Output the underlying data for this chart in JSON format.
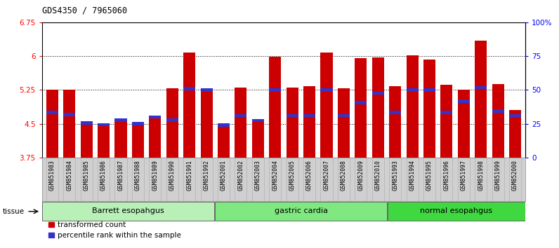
{
  "title": "GDS4350 / 7965060",
  "samples": [
    "GSM851983",
    "GSM851984",
    "GSM851985",
    "GSM851986",
    "GSM851987",
    "GSM851988",
    "GSM851989",
    "GSM851990",
    "GSM851991",
    "GSM851992",
    "GSM852001",
    "GSM852002",
    "GSM852003",
    "GSM852004",
    "GSM852005",
    "GSM852006",
    "GSM852007",
    "GSM852008",
    "GSM852009",
    "GSM852010",
    "GSM851993",
    "GSM851994",
    "GSM851995",
    "GSM851996",
    "GSM851997",
    "GSM851998",
    "GSM851999",
    "GSM852000"
  ],
  "red_values": [
    5.25,
    5.25,
    4.52,
    4.48,
    4.58,
    4.5,
    4.65,
    5.28,
    6.08,
    5.25,
    4.47,
    5.3,
    4.57,
    5.98,
    5.3,
    5.33,
    6.08,
    5.28,
    5.95,
    5.97,
    5.33,
    6.02,
    5.92,
    5.37,
    5.25,
    6.35,
    5.38,
    4.8
  ],
  "blue_values": [
    4.75,
    4.7,
    4.52,
    4.48,
    4.58,
    4.5,
    4.65,
    4.58,
    5.28,
    5.25,
    4.47,
    4.68,
    4.57,
    5.25,
    4.68,
    4.68,
    5.25,
    4.68,
    4.97,
    5.18,
    4.75,
    5.25,
    5.25,
    4.75,
    5.0,
    5.3,
    4.78,
    4.68
  ],
  "groups": [
    {
      "label": "Barrett esopahgus",
      "start": 0,
      "end": 9,
      "color": "#b8f0b8"
    },
    {
      "label": "gastric cardia",
      "start": 10,
      "end": 19,
      "color": "#80e880"
    },
    {
      "label": "normal esopahgus",
      "start": 20,
      "end": 27,
      "color": "#40d840"
    }
  ],
  "ymin": 3.75,
  "ymax": 6.75,
  "yticks": [
    3.75,
    4.5,
    5.25,
    6.0,
    6.75
  ],
  "ytick_labels": [
    "3.75",
    "4.5",
    "5.25",
    "6",
    "6.75"
  ],
  "y2tick_labels": [
    "0",
    "25",
    "50",
    "75",
    "100%"
  ],
  "hlines": [
    4.5,
    5.25,
    6.0
  ],
  "bar_color": "#cc0000",
  "blue_color": "#3333cc",
  "bar_width": 0.7,
  "xtick_bg": "#d0d0d0",
  "legend_red_label": "transformed count",
  "legend_blue_label": "percentile rank within the sample",
  "tissue_label": "tissue"
}
